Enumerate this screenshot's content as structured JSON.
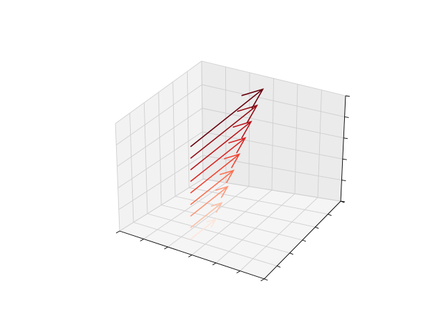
{
  "chart_data": {
    "type": "quiver3d",
    "title": "",
    "xlabel": "",
    "ylabel": "",
    "zlabel": "",
    "tick_labels_shown": false,
    "grid": true,
    "colormap": "Reds",
    "x_ticks_count": 6,
    "y_ticks_count": 6,
    "z_ticks_count": 5,
    "vectors": [
      {
        "index": 0,
        "x": 0,
        "y": 0,
        "z": 0.0,
        "u": 1,
        "v": 0.6,
        "w": 1,
        "color": "#fde6dc"
      },
      {
        "index": 1,
        "x": 0,
        "y": 0,
        "z": 0.12,
        "u": 1,
        "v": 0.6,
        "w": 1,
        "color": "#fcbfa6"
      },
      {
        "index": 2,
        "x": 0,
        "y": 0,
        "z": 0.24,
        "u": 1,
        "v": 0.6,
        "w": 1,
        "color": "#fc9677"
      },
      {
        "index": 3,
        "x": 0,
        "y": 0,
        "z": 0.36,
        "u": 1,
        "v": 0.6,
        "w": 1,
        "color": "#fb7050"
      },
      {
        "index": 4,
        "x": 0,
        "y": 0,
        "z": 0.48,
        "u": 1,
        "v": 0.6,
        "w": 1,
        "color": "#f14432"
      },
      {
        "index": 5,
        "x": 0,
        "y": 0,
        "z": 0.6,
        "u": 1,
        "v": 0.6,
        "w": 1,
        "color": "#d92523"
      },
      {
        "index": 6,
        "x": 0,
        "y": 0,
        "z": 0.72,
        "u": 1,
        "v": 0.6,
        "w": 1,
        "color": "#bb151a"
      },
      {
        "index": 7,
        "x": 0,
        "y": 0,
        "z": 0.84,
        "u": 1,
        "v": 0.6,
        "w": 1,
        "color": "#960b13"
      },
      {
        "index": 8,
        "x": 0,
        "y": 0,
        "z": 0.96,
        "u": 1,
        "v": 0.6,
        "w": 1,
        "color": "#67000d"
      }
    ]
  }
}
